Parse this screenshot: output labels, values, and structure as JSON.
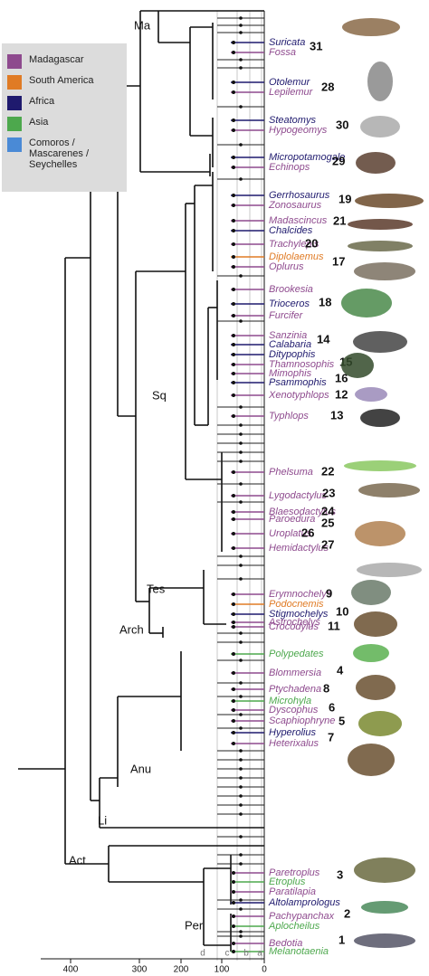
{
  "legend": [
    {
      "name": "Madagascar",
      "color": "#8e4a8e"
    },
    {
      "name": "South America",
      "color": "#e07b25"
    },
    {
      "name": "Africa",
      "color": "#1f1a6e"
    },
    {
      "name": "Asia",
      "color": "#4da84d"
    },
    {
      "name": "Comoros / Mascarenes / Seychelles",
      "color": "#4a8ad6"
    }
  ],
  "clades": [
    "Ma",
    "Sq",
    "Tes",
    "Arch",
    "Anu",
    "Li",
    "Act",
    "Per"
  ],
  "taxa": [
    {
      "name": "Suricata",
      "color": "#1f1a6e"
    },
    {
      "name": "Fossa",
      "color": "#8e4a8e"
    },
    {
      "name": "Otolemur",
      "color": "#1f1a6e"
    },
    {
      "name": "Lepilemur",
      "color": "#8e4a8e"
    },
    {
      "name": "Steatomys",
      "color": "#1f1a6e"
    },
    {
      "name": "Hypogeomys",
      "color": "#8e4a8e"
    },
    {
      "name": "Micropotamogale",
      "color": "#1f1a6e"
    },
    {
      "name": "Echinops",
      "color": "#8e4a8e"
    },
    {
      "name": "Gerrhosaurus",
      "color": "#1f1a6e"
    },
    {
      "name": "Zonosaurus",
      "color": "#8e4a8e"
    },
    {
      "name": "Madascincus",
      "color": "#8e4a8e"
    },
    {
      "name": "Chalcides",
      "color": "#1f1a6e"
    },
    {
      "name": "Trachylepis",
      "color": "#8e4a8e"
    },
    {
      "name": "Diplolaemus",
      "color": "#e07b25"
    },
    {
      "name": "Oplurus",
      "color": "#8e4a8e"
    },
    {
      "name": "Brookesia",
      "color": "#8e4a8e"
    },
    {
      "name": "Trioceros",
      "color": "#1f1a6e"
    },
    {
      "name": "Furcifer",
      "color": "#8e4a8e"
    },
    {
      "name": "Sanzinia",
      "color": "#8e4a8e"
    },
    {
      "name": "Calabaria",
      "color": "#1f1a6e"
    },
    {
      "name": "Ditypophis",
      "color": "#1f1a6e"
    },
    {
      "name": "Thamnosophis",
      "color": "#8e4a8e"
    },
    {
      "name": "Mimophis",
      "color": "#8e4a8e"
    },
    {
      "name": "Psammophis",
      "color": "#1f1a6e"
    },
    {
      "name": "Xenotyphlops",
      "color": "#8e4a8e"
    },
    {
      "name": "Typhlops",
      "color": "#8e4a8e"
    },
    {
      "name": "Phelsuma",
      "color": "#8e4a8e"
    },
    {
      "name": "Lygodactylus",
      "color": "#8e4a8e"
    },
    {
      "name": "Blaesodactylus",
      "color": "#8e4a8e"
    },
    {
      "name": "Paroedura",
      "color": "#8e4a8e"
    },
    {
      "name": "Uroplatus",
      "color": "#8e4a8e"
    },
    {
      "name": "Hemidactylus",
      "color": "#8e4a8e"
    },
    {
      "name": "Erymnochelys",
      "color": "#8e4a8e"
    },
    {
      "name": "Podocnemis",
      "color": "#e07b25"
    },
    {
      "name": "Stigmochelys",
      "color": "#1f1a6e"
    },
    {
      "name": "Astrochelys",
      "color": "#8e4a8e"
    },
    {
      "name": "Crocodylus",
      "color": "#8e4a8e"
    },
    {
      "name": "Polypedates",
      "color": "#4da84d"
    },
    {
      "name": "Blommersia",
      "color": "#8e4a8e"
    },
    {
      "name": "Ptychadena",
      "color": "#8e4a8e"
    },
    {
      "name": "Microhyla",
      "color": "#4da84d"
    },
    {
      "name": "Dyscophus",
      "color": "#8e4a8e"
    },
    {
      "name": "Scaphiophryne",
      "color": "#8e4a8e"
    },
    {
      "name": "Hyperolius",
      "color": "#1f1a6e"
    },
    {
      "name": "Heterixalus",
      "color": "#8e4a8e"
    },
    {
      "name": "Paretroplus",
      "color": "#8e4a8e"
    },
    {
      "name": "Etroplus",
      "color": "#4da84d"
    },
    {
      "name": "Paratilapia",
      "color": "#8e4a8e"
    },
    {
      "name": "Altolamprologus",
      "color": "#1f1a6e"
    },
    {
      "name": "Pachypanchax",
      "color": "#8e4a8e"
    },
    {
      "name": "Aplocheilus",
      "color": "#4da84d"
    },
    {
      "name": "Bedotia",
      "color": "#8e4a8e"
    },
    {
      "name": "Melanotaenia",
      "color": "#4da84d"
    }
  ],
  "numbers": [
    31,
    28,
    30,
    29,
    19,
    21,
    20,
    17,
    18,
    14,
    15,
    16,
    12,
    13,
    22,
    23,
    24,
    25,
    26,
    27,
    9,
    10,
    11,
    4,
    8,
    6,
    5,
    7,
    3,
    2,
    1
  ],
  "axis": {
    "ticks": [
      400,
      300,
      200,
      100,
      0
    ],
    "periods": [
      "d",
      "c",
      "b",
      "a"
    ]
  }
}
